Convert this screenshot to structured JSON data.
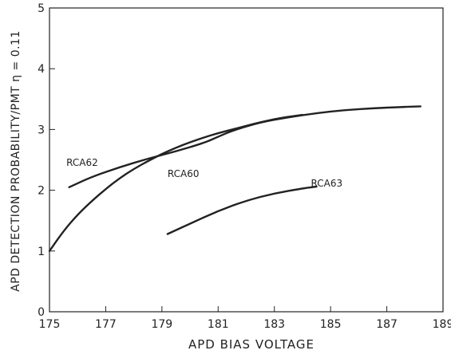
{
  "chart_data": {
    "type": "line",
    "title": "",
    "xlabel": "APD BIAS VOLTAGE",
    "ylabel": "APD DETECTION PROBABILITY/PMT η = 0.11",
    "xlim": [
      175,
      189
    ],
    "ylim": [
      0,
      5
    ],
    "x_ticks": [
      "175",
      "177",
      "179",
      "181",
      "183",
      "185",
      "187",
      "189"
    ],
    "y_ticks": [
      "0",
      "1",
      "2",
      "3",
      "4",
      "5"
    ],
    "grid": false,
    "legend": "none",
    "line_color": "#222222",
    "series": [
      {
        "name": "RCA62",
        "x": [
          175.7,
          176.5,
          177.5,
          178.5,
          179.5,
          180.5,
          181.0,
          181.5,
          182.5,
          183.5,
          184.5,
          185.5,
          186.5,
          187.5,
          188.2
        ],
        "y": [
          2.05,
          2.22,
          2.38,
          2.52,
          2.64,
          2.78,
          2.88,
          2.98,
          3.12,
          3.2,
          3.27,
          3.32,
          3.35,
          3.37,
          3.38
        ]
      },
      {
        "name": "RCA60",
        "x": [
          175.0,
          175.5,
          176.0,
          176.5,
          177.0,
          177.5,
          178.0,
          178.5,
          179.0,
          179.5,
          180.0,
          180.5,
          181.0,
          181.5,
          182.0,
          182.5,
          183.0,
          183.5,
          184.0
        ],
        "y": [
          1.0,
          1.33,
          1.6,
          1.82,
          2.02,
          2.2,
          2.35,
          2.48,
          2.6,
          2.7,
          2.79,
          2.87,
          2.94,
          3.0,
          3.06,
          3.12,
          3.17,
          3.21,
          3.24
        ]
      },
      {
        "name": "RCA63",
        "x": [
          179.2,
          180.0,
          181.0,
          182.0,
          183.0,
          184.0,
          184.5
        ],
        "y": [
          1.28,
          1.45,
          1.66,
          1.83,
          1.95,
          2.03,
          2.06
        ]
      }
    ],
    "annotations": [
      {
        "text": "RCA62",
        "x": 175.6,
        "y": 2.4
      },
      {
        "text": "RCA60",
        "x": 179.2,
        "y": 2.22
      },
      {
        "text": "RCA63",
        "x": 184.3,
        "y": 2.06
      }
    ]
  }
}
